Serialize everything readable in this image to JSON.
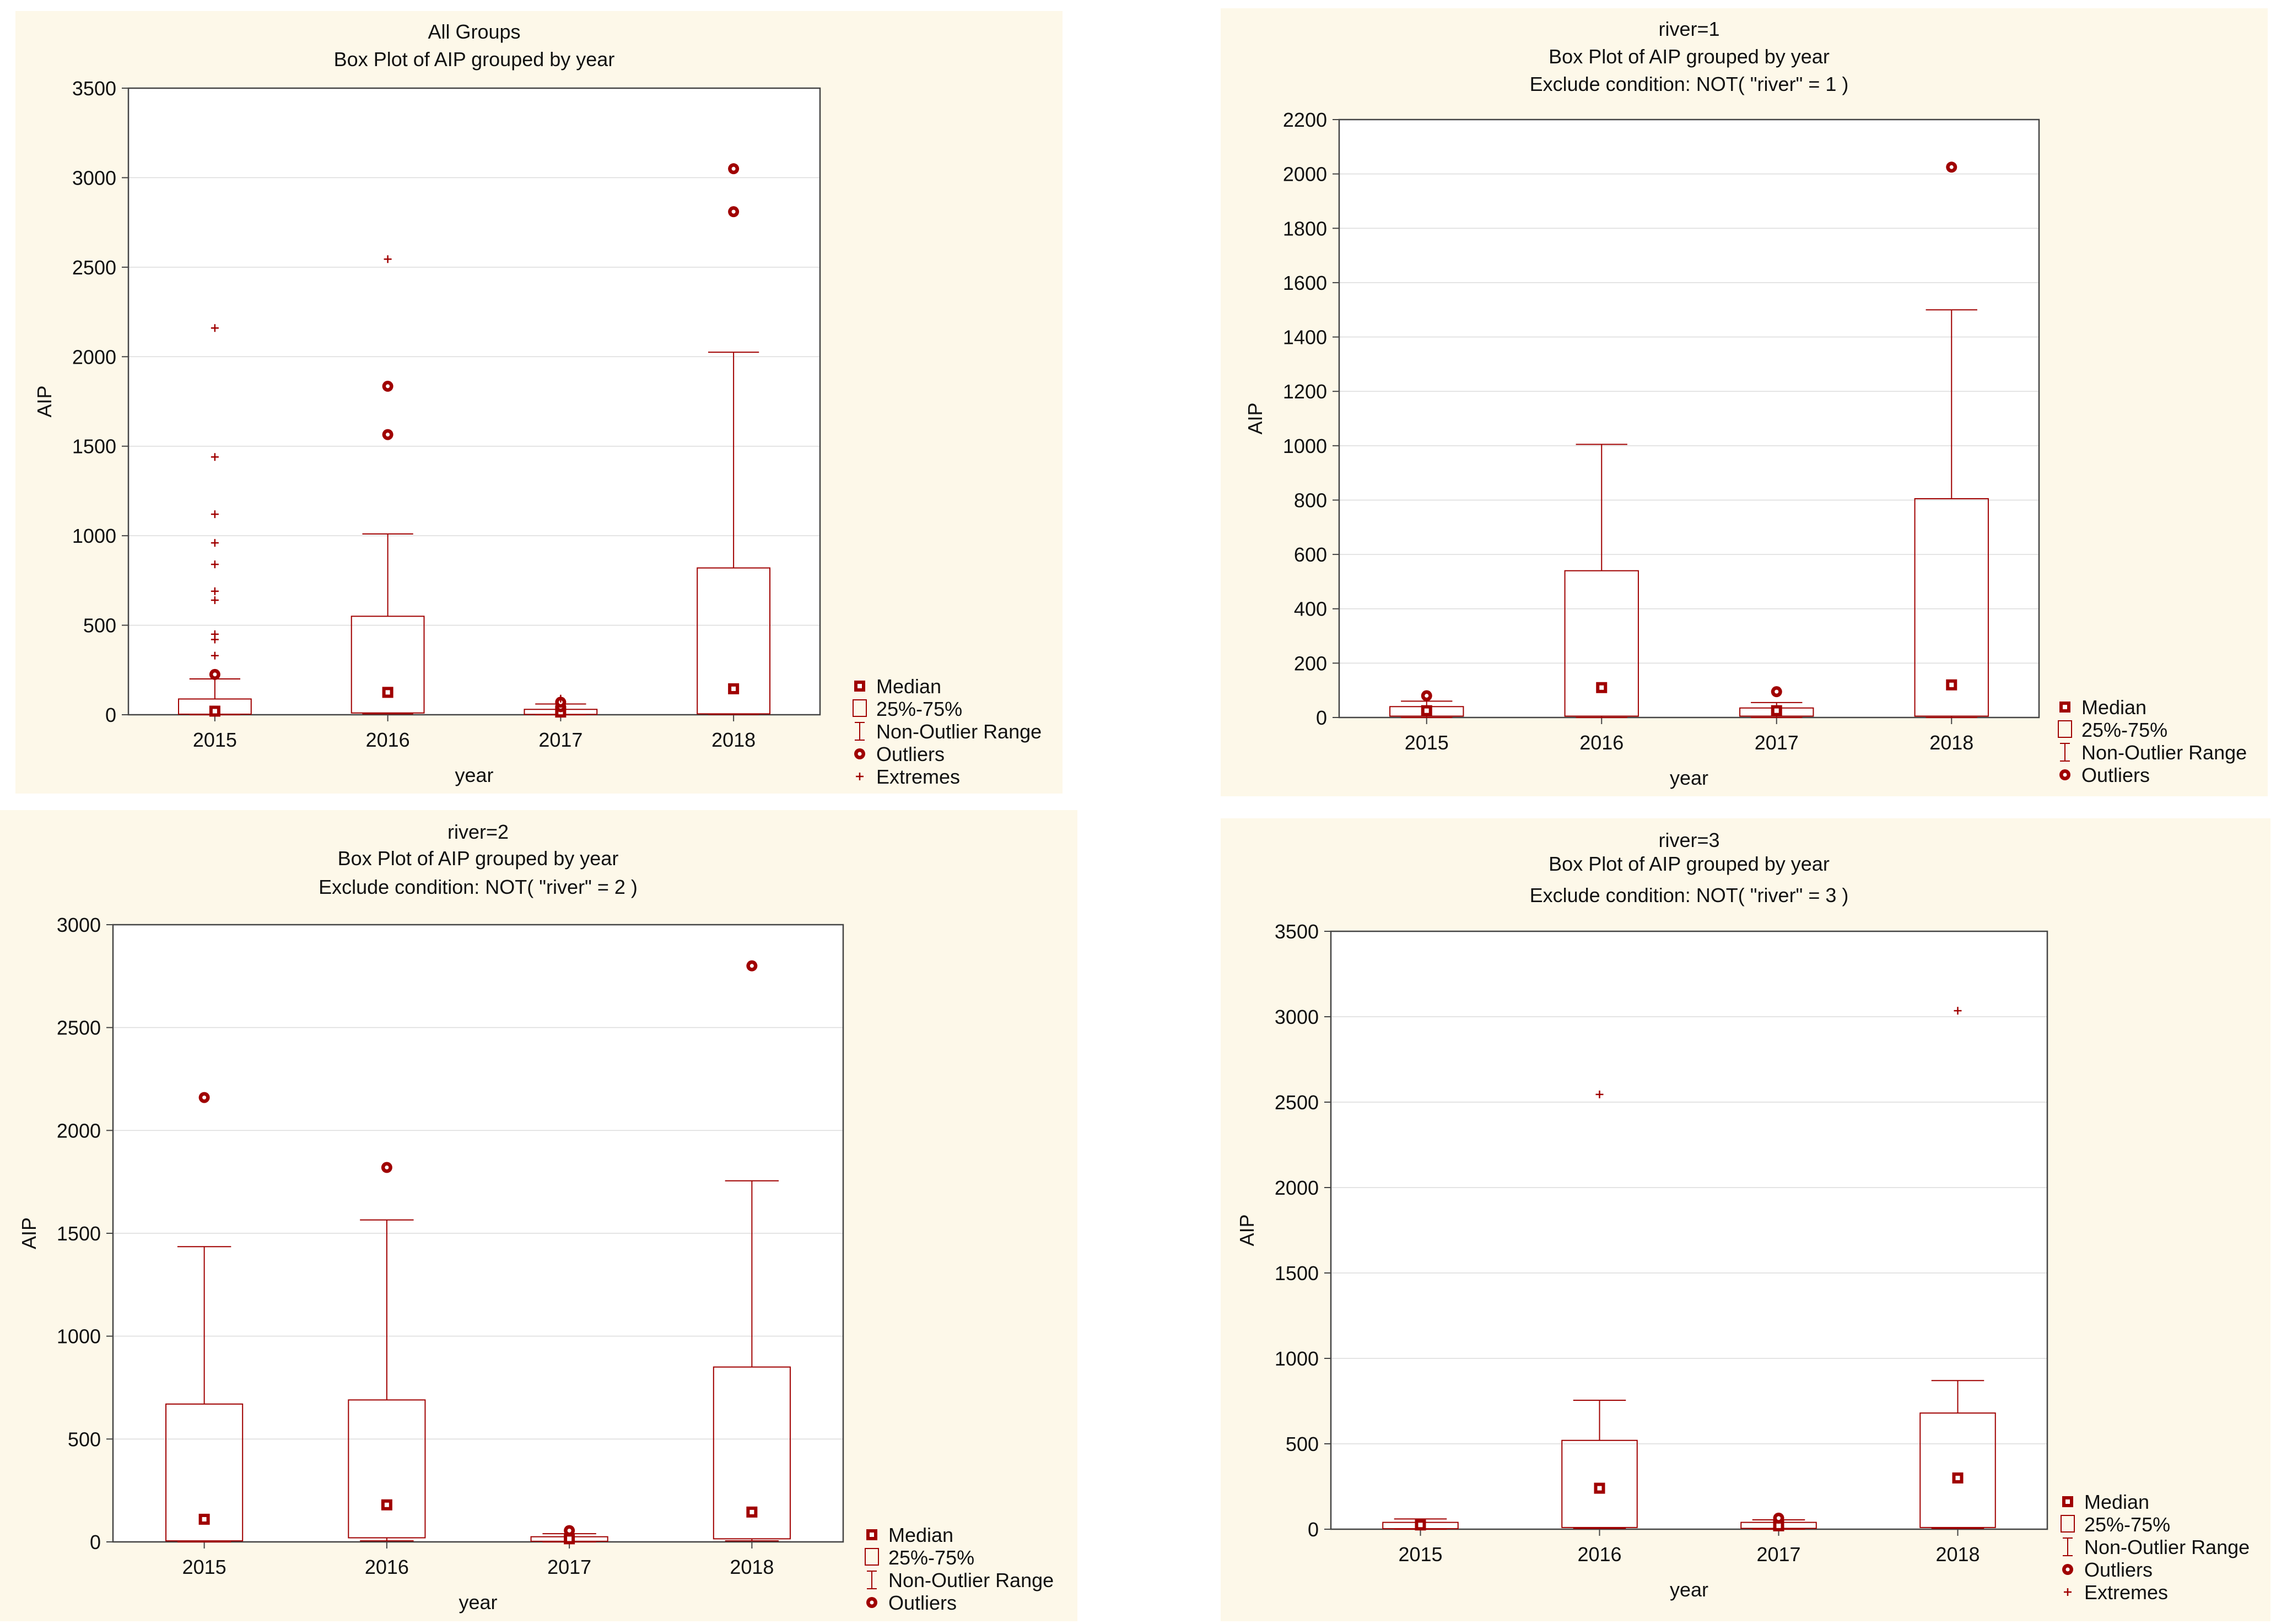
{
  "chart_data": [
    {
      "type": "box",
      "title_lines": [
        "All Groups",
        "Box Plot of AIP grouped by  year"
      ],
      "xlabel": "year",
      "ylabel": "AIP",
      "ylim": [
        0,
        3500
      ],
      "yticks": [
        0,
        500,
        1000,
        1500,
        2000,
        2500,
        3000,
        3500
      ],
      "categories": [
        "2015",
        "2016",
        "2017",
        "2018"
      ],
      "boxes": [
        {
          "min": 0,
          "q1": 3,
          "median": 20,
          "q3": 88,
          "max": 200,
          "outliers": [
            225
          ],
          "extremes": [
            330,
            420,
            450,
            640,
            690,
            840,
            960,
            1120,
            1440,
            2160
          ]
        },
        {
          "min": 5,
          "q1": 10,
          "median": 125,
          "q3": 550,
          "max": 1010,
          "outliers": [
            1565,
            1835
          ],
          "extremes": [
            2545
          ]
        },
        {
          "min": 0,
          "q1": 2,
          "median": 15,
          "q3": 30,
          "max": 60,
          "outliers": [
            45,
            70
          ],
          "extremes": [
            90
          ]
        },
        {
          "min": 2,
          "q1": 5,
          "median": 145,
          "q3": 820,
          "max": 2025,
          "outliers": [
            2810,
            3050
          ],
          "extremes": []
        }
      ],
      "legend": [
        "Median",
        "25%-75%",
        "Non-Outlier Range",
        "Outliers",
        "Extremes"
      ]
    },
    {
      "type": "box",
      "title_lines": [
        "river=1",
        "Box Plot of AIP grouped by  year",
        "Exclude condition: NOT( \"river\" = 1 )"
      ],
      "xlabel": "year",
      "ylabel": "AIP",
      "ylim": [
        0,
        2200
      ],
      "yticks": [
        0,
        200,
        400,
        600,
        800,
        1000,
        1200,
        1400,
        1600,
        1800,
        2000,
        2200
      ],
      "categories": [
        "2015",
        "2016",
        "2017",
        "2018"
      ],
      "boxes": [
        {
          "min": 0,
          "q1": 5,
          "median": 25,
          "q3": 40,
          "max": 60,
          "outliers": [
            80
          ],
          "extremes": []
        },
        {
          "min": 0,
          "q1": 5,
          "median": 110,
          "q3": 540,
          "max": 1005,
          "outliers": [],
          "extremes": []
        },
        {
          "min": 0,
          "q1": 5,
          "median": 25,
          "q3": 35,
          "max": 55,
          "outliers": [
            95
          ],
          "extremes": []
        },
        {
          "min": 0,
          "q1": 5,
          "median": 120,
          "q3": 805,
          "max": 1500,
          "outliers": [
            2025
          ],
          "extremes": []
        }
      ],
      "legend": [
        "Median",
        "25%-75%",
        "Non-Outlier Range",
        "Outliers"
      ]
    },
    {
      "type": "box",
      "title_lines": [
        "river=2",
        "Box Plot of AIP grouped by  year",
        "Exclude condition: NOT( \"river\" = 2 )"
      ],
      "xlabel": "year",
      "ylabel": "AIP",
      "ylim": [
        0,
        3000
      ],
      "yticks": [
        0,
        500,
        1000,
        1500,
        2000,
        2500,
        3000
      ],
      "categories": [
        "2015",
        "2016",
        "2017",
        "2018"
      ],
      "boxes": [
        {
          "min": 0,
          "q1": 5,
          "median": 110,
          "q3": 670,
          "max": 1435,
          "outliers": [
            2160
          ],
          "extremes": []
        },
        {
          "min": 5,
          "q1": 20,
          "median": 180,
          "q3": 690,
          "max": 1565,
          "outliers": [
            1820
          ],
          "extremes": []
        },
        {
          "min": 0,
          "q1": 3,
          "median": 15,
          "q3": 25,
          "max": 40,
          "outliers": [
            55
          ],
          "extremes": []
        },
        {
          "min": 5,
          "q1": 15,
          "median": 145,
          "q3": 850,
          "max": 1755,
          "outliers": [
            2800
          ],
          "extremes": []
        }
      ],
      "legend": [
        "Median",
        "25%-75%",
        "Non-Outlier Range",
        "Outliers"
      ]
    },
    {
      "type": "box",
      "title_lines": [
        "river=3",
        "Box Plot of AIP grouped by  year",
        "Exclude condition: NOT( \"river\" = 3 )"
      ],
      "xlabel": "year",
      "ylabel": "AIP",
      "ylim": [
        0,
        3500
      ],
      "yticks": [
        0,
        500,
        1000,
        1500,
        2000,
        2500,
        3000,
        3500
      ],
      "categories": [
        "2015",
        "2016",
        "2017",
        "2018"
      ],
      "boxes": [
        {
          "min": 0,
          "q1": 3,
          "median": 25,
          "q3": 40,
          "max": 60,
          "outliers": [],
          "extremes": []
        },
        {
          "min": 5,
          "q1": 10,
          "median": 240,
          "q3": 520,
          "max": 755,
          "outliers": [],
          "extremes": [
            2545
          ]
        },
        {
          "min": 0,
          "q1": 5,
          "median": 20,
          "q3": 40,
          "max": 55,
          "outliers": [
            65
          ],
          "extremes": []
        },
        {
          "min": 5,
          "q1": 10,
          "median": 300,
          "q3": 680,
          "max": 870,
          "outliers": [],
          "extremes": [
            3035
          ]
        }
      ],
      "legend": [
        "Median",
        "25%-75%",
        "Non-Outlier Range",
        "Outliers",
        "Extremes"
      ]
    }
  ],
  "colors": {
    "series": "#a00000",
    "panel": "#fdf8e9",
    "grid": "#dcdcdc",
    "axis": "#444444"
  }
}
